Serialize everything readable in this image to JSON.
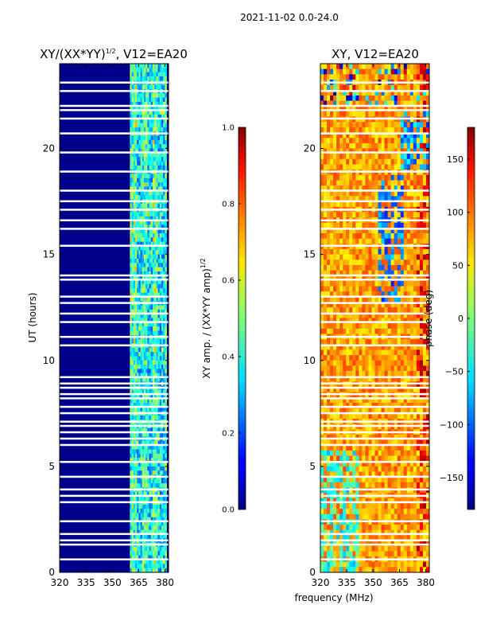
{
  "suptitle": "2021-11-02 0.0-24.0",
  "chart_data": [
    {
      "type": "heatmap",
      "title": "XY/(XX*YY)",
      "title_sup": "1/2",
      "title_tail": ", V12=EA20",
      "xlabel": "",
      "ylabel": "UT (hours)",
      "xlim": [
        320,
        382
      ],
      "ylim": [
        0,
        24
      ],
      "xticks": [
        320,
        335,
        350,
        365,
        380
      ],
      "yticks": [
        0,
        5,
        10,
        15,
        20
      ],
      "colorbar": {
        "label": "XY amp. / (XX*YY amp)",
        "label_sup": "1/2",
        "range": [
          0.0,
          1.0
        ],
        "ticks": [
          "0.0",
          "0.2",
          "0.4",
          "0.6",
          "0.8",
          "1.0"
        ],
        "colormap": "jet"
      },
      "description_values": {
        "background_level": 0.05,
        "band_x_range": [
          360,
          380
        ],
        "band_level_range": [
          0.2,
          0.5
        ]
      }
    },
    {
      "type": "heatmap",
      "title": "XY, V12=EA20",
      "xlabel": "frequency (MHz)",
      "ylabel": "",
      "xlim": [
        320,
        382
      ],
      "ylim": [
        0,
        24
      ],
      "xticks": [
        320,
        335,
        350,
        365,
        380
      ],
      "yticks": [
        0,
        5,
        10,
        15,
        20
      ],
      "colorbar": {
        "label": "phase (deg)",
        "range": [
          -180,
          180
        ],
        "ticks": [
          "−150",
          "−100",
          "−50",
          "0",
          "50",
          "100",
          "150"
        ],
        "colormap": "jet"
      }
    }
  ],
  "gap_rows_hours": [
    0.6,
    1.3,
    1.5,
    1.8,
    2.4,
    3.3,
    3.6,
    3.9,
    4.5,
    5.2,
    6.0,
    6.3,
    6.6,
    6.9,
    7.1,
    7.5,
    7.8,
    8.2,
    8.4,
    8.7,
    8.9,
    9.2,
    10.7,
    11.1,
    11.8,
    12.2,
    12.7,
    13.0,
    13.8,
    14.0,
    15.4,
    16.2,
    16.6,
    17.1,
    17.5,
    18.0,
    18.9,
    19.8,
    20.7,
    21.4,
    21.8,
    22.0,
    22.7,
    23.1
  ]
}
